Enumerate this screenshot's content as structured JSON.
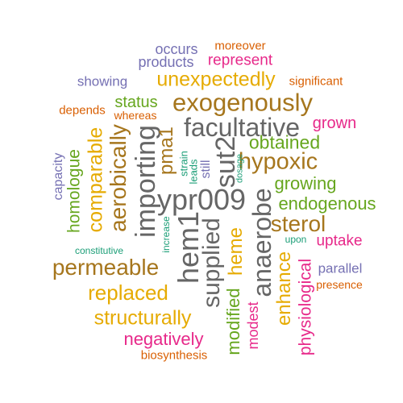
{
  "palette": {
    "purple": "#7570b3",
    "orange": "#d95f02",
    "magenta": "#e7298a",
    "green": "#66a61e",
    "gold": "#e6ab02",
    "brown": "#a6761d",
    "gray": "#666666",
    "teal": "#1b9e77"
  },
  "words": [
    {
      "text": "occurs",
      "color": "purple",
      "orientation": "horizontal"
    },
    {
      "text": "moreover",
      "color": "orange",
      "orientation": "horizontal"
    },
    {
      "text": "products",
      "color": "purple",
      "orientation": "horizontal"
    },
    {
      "text": "represent",
      "color": "magenta",
      "orientation": "horizontal"
    },
    {
      "text": "showing",
      "color": "purple",
      "orientation": "horizontal"
    },
    {
      "text": "unexpectedly",
      "color": "gold",
      "orientation": "horizontal"
    },
    {
      "text": "significant",
      "color": "orange",
      "orientation": "horizontal"
    },
    {
      "text": "status",
      "color": "green",
      "orientation": "horizontal"
    },
    {
      "text": "exogenously",
      "color": "brown",
      "orientation": "horizontal"
    },
    {
      "text": "depends",
      "color": "orange",
      "orientation": "horizontal"
    },
    {
      "text": "whereas",
      "color": "orange",
      "orientation": "horizontal"
    },
    {
      "text": "grown",
      "color": "magenta",
      "orientation": "horizontal"
    },
    {
      "text": "facultative",
      "color": "gray",
      "orientation": "horizontal"
    },
    {
      "text": "obtained",
      "color": "green",
      "orientation": "horizontal"
    },
    {
      "text": "hypoxic",
      "color": "brown",
      "orientation": "horizontal"
    },
    {
      "text": "growing",
      "color": "green",
      "orientation": "horizontal"
    },
    {
      "text": "endogenous",
      "color": "green",
      "orientation": "horizontal"
    },
    {
      "text": "sterol",
      "color": "brown",
      "orientation": "horizontal"
    },
    {
      "text": "upon",
      "color": "teal",
      "orientation": "horizontal"
    },
    {
      "text": "uptake",
      "color": "magenta",
      "orientation": "horizontal"
    },
    {
      "text": "constitutive",
      "color": "teal",
      "orientation": "horizontal"
    },
    {
      "text": "permeable",
      "color": "brown",
      "orientation": "horizontal"
    },
    {
      "text": "parallel",
      "color": "purple",
      "orientation": "horizontal"
    },
    {
      "text": "presence",
      "color": "orange",
      "orientation": "horizontal"
    },
    {
      "text": "replaced",
      "color": "gold",
      "orientation": "horizontal"
    },
    {
      "text": "structurally",
      "color": "gold",
      "orientation": "horizontal"
    },
    {
      "text": "negatively",
      "color": "magenta",
      "orientation": "horizontal"
    },
    {
      "text": "biosynthesis",
      "color": "orange",
      "orientation": "horizontal"
    },
    {
      "text": "ypr009",
      "color": "gray",
      "orientation": "horizontal"
    },
    {
      "text": "capacity",
      "color": "purple",
      "orientation": "vertical"
    },
    {
      "text": "homologue",
      "color": "green",
      "orientation": "vertical"
    },
    {
      "text": "comparable",
      "color": "gold",
      "orientation": "vertical"
    },
    {
      "text": "aerobically",
      "color": "brown",
      "orientation": "vertical"
    },
    {
      "text": "importing",
      "color": "gray",
      "orientation": "vertical"
    },
    {
      "text": "pma1",
      "color": "brown",
      "orientation": "vertical"
    },
    {
      "text": "strain",
      "color": "teal",
      "orientation": "vertical"
    },
    {
      "text": "leads",
      "color": "teal",
      "orientation": "vertical"
    },
    {
      "text": "still",
      "color": "purple",
      "orientation": "vertical"
    },
    {
      "text": "sut2",
      "color": "gray",
      "orientation": "vertical"
    },
    {
      "text": "dosage",
      "color": "teal",
      "orientation": "vertical"
    },
    {
      "text": "increase",
      "color": "teal",
      "orientation": "vertical"
    },
    {
      "text": "hem1",
      "color": "gray",
      "orientation": "vertical"
    },
    {
      "text": "supplied",
      "color": "gray",
      "orientation": "vertical"
    },
    {
      "text": "heme",
      "color": "gold",
      "orientation": "vertical"
    },
    {
      "text": "modified",
      "color": "green",
      "orientation": "vertical"
    },
    {
      "text": "anaerobe",
      "color": "gray",
      "orientation": "vertical"
    },
    {
      "text": "modest",
      "color": "magenta",
      "orientation": "vertical"
    },
    {
      "text": "enhance",
      "color": "gold",
      "orientation": "vertical"
    },
    {
      "text": "physiological",
      "color": "magenta",
      "orientation": "vertical"
    }
  ]
}
